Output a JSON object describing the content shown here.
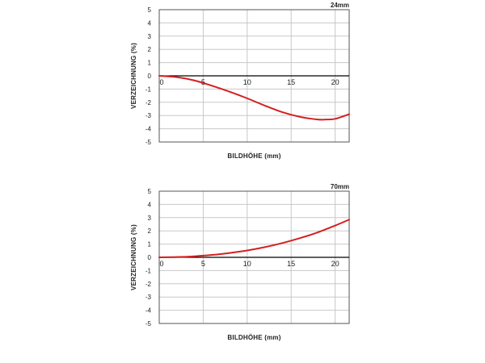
{
  "chart_data": [
    {
      "type": "line",
      "title": "24mm",
      "xlabel": "BILDHÖHE (mm)",
      "ylabel": "VERZEICHNUNG (%)",
      "xlim": [
        0,
        21.6
      ],
      "ylim": [
        -5,
        5
      ],
      "xticks": [
        "0",
        "5",
        "10",
        "15",
        "20"
      ],
      "yticks": [
        "5",
        "4",
        "3",
        "2",
        "1",
        "0",
        "-1",
        "-2",
        "-3",
        "-4",
        "-5"
      ],
      "grid": true,
      "series": [
        {
          "color": "#d42020",
          "x": [
            0,
            2,
            4,
            6,
            8,
            10,
            12,
            14,
            16,
            18,
            19,
            20,
            21.6
          ],
          "y": [
            0,
            -0.1,
            -0.35,
            -0.75,
            -1.2,
            -1.7,
            -2.25,
            -2.75,
            -3.1,
            -3.3,
            -3.3,
            -3.25,
            -2.9
          ]
        }
      ]
    },
    {
      "type": "line",
      "title": "70mm",
      "xlabel": "BILDHÖHE (mm)",
      "ylabel": "VERZEICHNUNG (%)",
      "xlim": [
        0,
        21.6
      ],
      "ylim": [
        -5,
        5
      ],
      "xticks": [
        "0",
        "5",
        "10",
        "15",
        "20"
      ],
      "yticks": [
        "5",
        "4",
        "3",
        "2",
        "1",
        "0",
        "-1",
        "-2",
        "-3",
        "-4",
        "-5"
      ],
      "grid": true,
      "series": [
        {
          "color": "#d42020",
          "x": [
            0,
            2,
            4,
            6,
            8,
            10,
            12,
            14,
            16,
            18,
            20,
            21.6
          ],
          "y": [
            0,
            0.02,
            0.08,
            0.18,
            0.33,
            0.52,
            0.77,
            1.08,
            1.45,
            1.88,
            2.4,
            2.85
          ]
        }
      ]
    }
  ]
}
